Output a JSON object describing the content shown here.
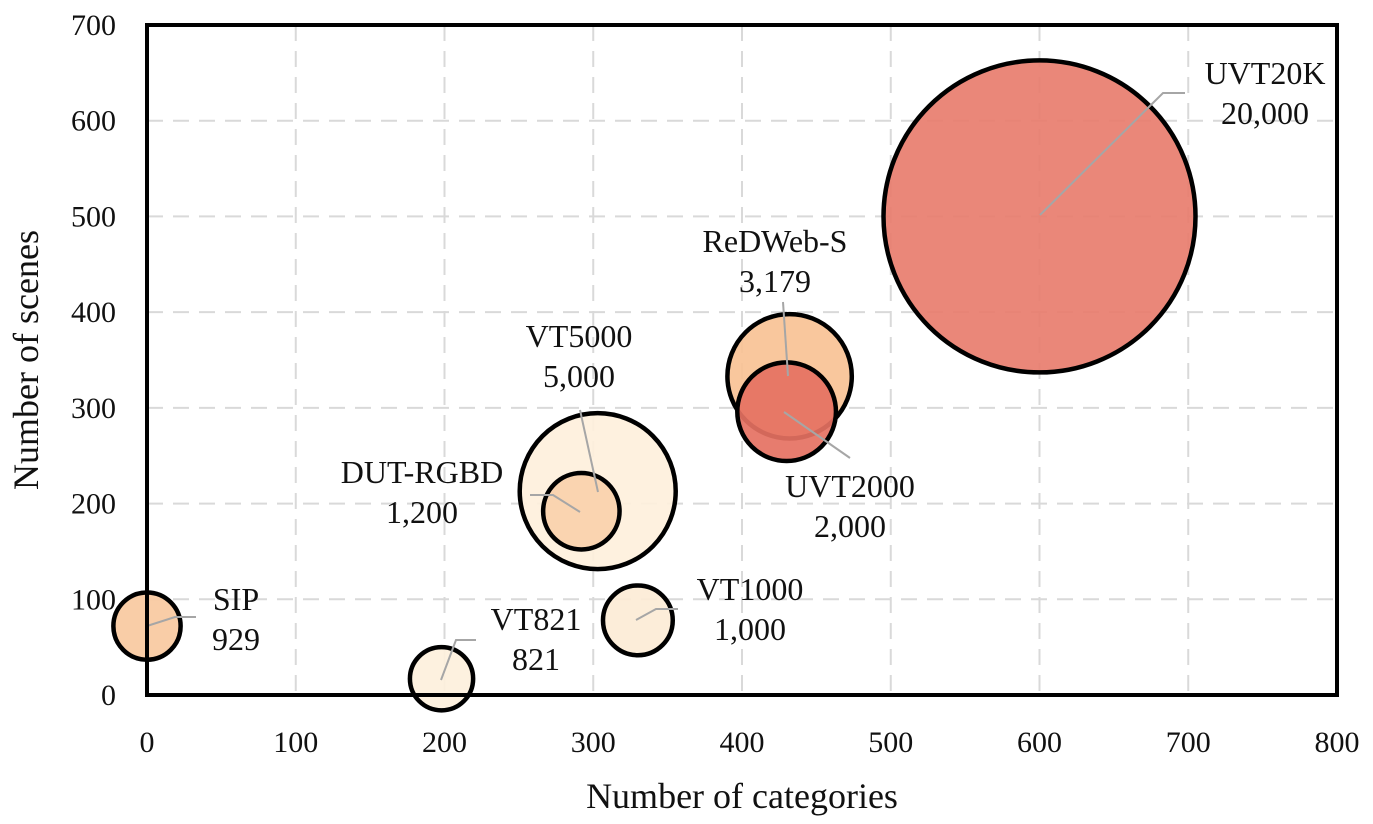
{
  "chart_data": {
    "type": "bubble",
    "xlabel": "Number of categories",
    "ylabel": "Number of scenes",
    "xlim": [
      0,
      800
    ],
    "ylim": [
      0,
      700
    ],
    "x_ticks": [
      0,
      100,
      200,
      300,
      400,
      500,
      600,
      700,
      800
    ],
    "y_ticks": [
      0,
      100,
      200,
      300,
      400,
      500,
      600,
      700
    ],
    "grid": true,
    "legend": "none",
    "size_label_meaning": "number of images",
    "points": [
      {
        "name": "SIP",
        "x": 0,
        "y": 72,
        "size": 929,
        "size_label": "929",
        "color": "#f8c9a0"
      },
      {
        "name": "VT821",
        "x": 198,
        "y": 17,
        "size": 821,
        "size_label": "821",
        "color": "#fdf0dc"
      },
      {
        "name": "VT1000",
        "x": 330,
        "y": 78,
        "size": 1000,
        "size_label": "1,000",
        "color": "#fcecd6"
      },
      {
        "name": "VT5000",
        "x": 303,
        "y": 213,
        "size": 5000,
        "size_label": "5,000",
        "color": "#fef0dc"
      },
      {
        "name": "DUT-RGBD",
        "x": 292,
        "y": 192,
        "size": 1200,
        "size_label": "1,200",
        "color": "#fad1ab"
      },
      {
        "name": "UVT2000",
        "x": 430,
        "y": 296,
        "size": 2000,
        "size_label": "2,000",
        "color": "#e57162"
      },
      {
        "name": "ReDWeb-S",
        "x": 432,
        "y": 333,
        "size": 3179,
        "size_label": "3,179",
        "color": "#f8c295"
      },
      {
        "name": "UVT20K",
        "x": 600,
        "y": 500,
        "size": 20000,
        "size_label": "20,000",
        "color": "#e87d6e"
      }
    ]
  }
}
